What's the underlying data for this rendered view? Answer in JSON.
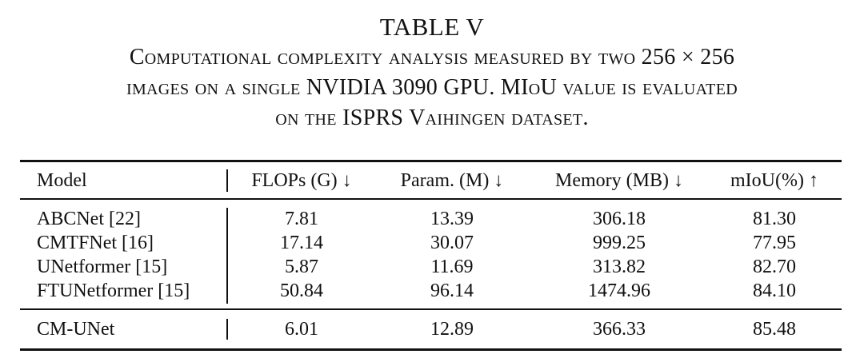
{
  "table": {
    "label": "TABLE V",
    "caption_lines": [
      "Computational complexity analysis measured by two 256 × 256",
      "images on a single NVIDIA 3090 GPU. MIoU value is evaluated",
      "on the ISPRS Vaihingen dataset."
    ],
    "headers": [
      "Model",
      "FLOPs (G) ↓",
      "Param. (M) ↓",
      "Memory (MB) ↓",
      "mIoU(%) ↑"
    ],
    "rows": [
      [
        "ABCNet [22]",
        "7.81",
        "13.39",
        "306.18",
        "81.30"
      ],
      [
        "CMTFNet [16]",
        "17.14",
        "30.07",
        "999.25",
        "77.95"
      ],
      [
        "UNetformer [15]",
        "5.87",
        "11.69",
        "313.82",
        "82.70"
      ],
      [
        "FTUNetformer [15]",
        "50.84",
        "96.14",
        "1474.96",
        "84.10"
      ]
    ],
    "final_row": [
      "CM-UNet",
      "6.01",
      "12.89",
      "366.33",
      "85.48"
    ]
  }
}
